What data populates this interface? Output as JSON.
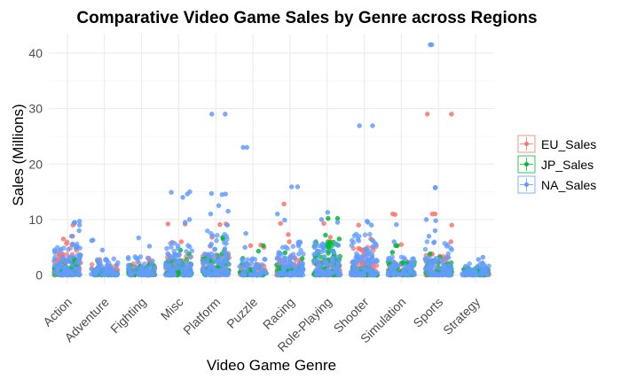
{
  "chart_data": {
    "type": "scatter",
    "title": "Comparative Video Game Sales by Genre across Regions",
    "xlabel": "Video Game Genre",
    "ylabel": "Sales (Millions)",
    "ylim": [
      -1.5,
      43.5
    ],
    "yticks": [
      0,
      10,
      20,
      30,
      40
    ],
    "grid": true,
    "legend_position": "right",
    "categories": [
      "Action",
      "Adventure",
      "Fighting",
      "Misc",
      "Platform",
      "Puzzle",
      "Racing",
      "Role-Playing",
      "Shooter",
      "Simulation",
      "Sports",
      "Strategy"
    ],
    "series": [
      {
        "name": "EU_Sales",
        "color": "#F8766D",
        "typical_max": [
          6.0,
          2.0,
          2.5,
          4.0,
          4.0,
          2.0,
          4.0,
          3.0,
          5.5,
          2.5,
          4.0,
          1.5
        ],
        "notable": [
          [
            9.3,
            9.0,
            7.0,
            6.5
          ],
          [
            2.8
          ],
          [
            3.0
          ],
          [
            9.2,
            9.2,
            6.0,
            5.9
          ],
          [
            9.2,
            9.1,
            6.8,
            5.2
          ],
          [
            5.4,
            5.3,
            5.0
          ],
          [
            12.8,
            9.3,
            7.3,
            6.0
          ],
          [
            9.3,
            6.8,
            6.0
          ],
          [
            9.0,
            6.5
          ],
          [
            11.0,
            10.9,
            5.5
          ],
          [
            29.0,
            29.0,
            11.0,
            11.0,
            9.0,
            6.0
          ],
          [
            2.1
          ]
        ]
      },
      {
        "name": "JP_Sales",
        "color": "#00BA38",
        "typical_max": [
          2.5,
          1.5,
          2.0,
          3.0,
          4.0,
          2.0,
          2.0,
          6.0,
          1.5,
          2.5,
          2.5,
          1.5
        ],
        "notable": [
          [
            3.0
          ],
          [
            2.5
          ],
          [
            2.0
          ],
          [
            4.5,
            3.8
          ],
          [
            6.8,
            6.5,
            4.5
          ],
          [
            5.3,
            4.3,
            3.0
          ],
          [
            4.0,
            3.0
          ],
          [
            10.2,
            10.2,
            7.2,
            6.5
          ],
          [
            1.5
          ],
          [
            5.3,
            5.3,
            4.1
          ],
          [
            3.8,
            3.2,
            2.5
          ],
          [
            1.0
          ]
        ]
      },
      {
        "name": "NA_Sales",
        "color": "#619CFF",
        "typical_max": [
          6.0,
          3.0,
          3.5,
          6.0,
          8.0,
          3.0,
          6.0,
          6.0,
          7.5,
          3.5,
          6.0,
          2.5
        ],
        "notable": [
          [
            9.7,
            9.5,
            9.4,
            9.0,
            8.0,
            7.0
          ],
          [
            6.3,
            6.2,
            4.5
          ],
          [
            6.7,
            5.2
          ],
          [
            15.0,
            14.9,
            14.6,
            14.0,
            10.0,
            9.5
          ],
          [
            29.0,
            29.0,
            14.7,
            14.6,
            14.5,
            12.5,
            11.5,
            11.0,
            9.0
          ],
          [
            23.0,
            23.0,
            7.5,
            5.0
          ],
          [
            15.9,
            15.9,
            11.0,
            9.9
          ],
          [
            11.3,
            10.0,
            9.5
          ],
          [
            26.9,
            26.9,
            9.7,
            9.5,
            9.0
          ],
          [
            9.1,
            6.0
          ],
          [
            41.5,
            41.5,
            15.8,
            15.7,
            10.0,
            9.8,
            8.0,
            7.0
          ],
          [
            3.2,
            2.8
          ]
        ]
      }
    ]
  }
}
